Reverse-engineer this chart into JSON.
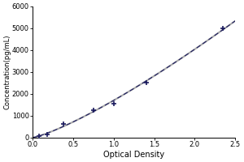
{
  "x_data": [
    0.08,
    0.18,
    0.38,
    0.75,
    1.0,
    1.4,
    2.35
  ],
  "y_data": [
    78,
    156,
    625,
    1250,
    1563,
    2500,
    5000
  ],
  "xlabel": "Optical Density",
  "ylabel": "Concentration(pg/mL)",
  "xlim": [
    0,
    2.5
  ],
  "ylim": [
    0,
    6000
  ],
  "xticks": [
    0,
    0.5,
    1.0,
    1.5,
    2.0,
    2.5
  ],
  "yticks": [
    0,
    1000,
    2000,
    3000,
    4000,
    5000,
    6000
  ],
  "line_color": "#aaaaaa",
  "marker_color": "#1a1a5e",
  "bg_color": "#ffffff",
  "figsize": [
    3.0,
    2.0
  ],
  "dpi": 100
}
